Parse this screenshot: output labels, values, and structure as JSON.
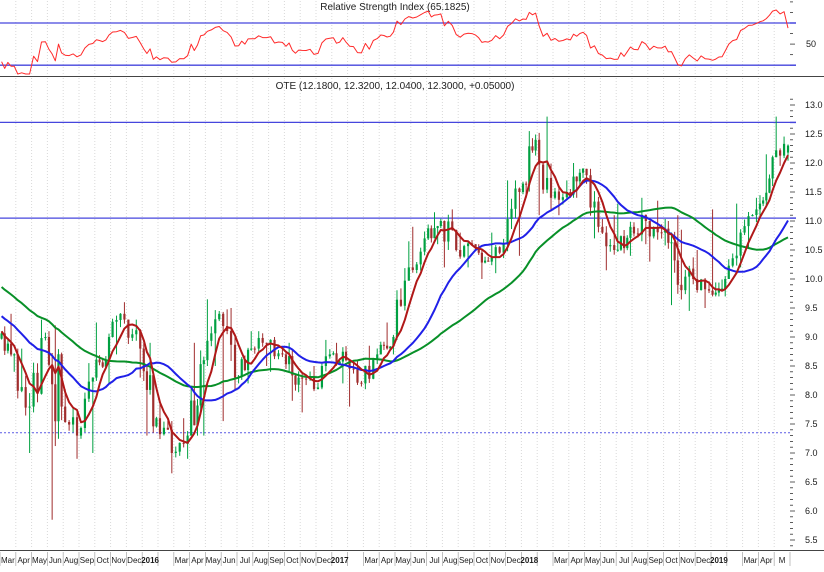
{
  "window": {
    "background": "#ffffff"
  },
  "rsi_panel": {
    "title": "Relative Strength Index (65.1825)",
    "indicator_name": "Relative Strength Index",
    "last_value": 65.1825,
    "levels": {
      "upper": 70,
      "middle": 50,
      "lower": 30
    },
    "axis_label": "50"
  },
  "price_panel": {
    "title": "OTE (12.1800, 12.3200, 12.0400, 12.3000, +0.05000)",
    "symbol": "OTE",
    "last_bar": {
      "open": 12.18,
      "high": 12.32,
      "low": 12.04,
      "close": 12.3,
      "change": "+0.05000"
    },
    "y_ticks": [
      13.0,
      12.5,
      12.0,
      11.5,
      11.0,
      10.5,
      10.0,
      9.5,
      9.0,
      8.5,
      8.0,
      7.5,
      7.0,
      6.5,
      6.0,
      5.5
    ]
  },
  "x_axis": {
    "slots": [
      "Mar",
      "Apr",
      "May",
      "Jun",
      "Aug",
      "Sep",
      "Oct",
      "Nov",
      "Dec",
      "2016",
      "",
      "Mar",
      "Apr",
      "May",
      "Jun",
      "Jul",
      "Aug",
      "Sep",
      "Oct",
      "Nov",
      "Dec",
      "2017",
      "",
      "Mar",
      "Apr",
      "May",
      "Jun",
      "Jul",
      "Aug",
      "Sep",
      "Oct",
      "Nov",
      "Dec",
      "2018",
      "",
      "Mar",
      "Apr",
      "May",
      "Jun",
      "Jul",
      "Aug",
      "Sep",
      "Oct",
      "Nov",
      "Dec",
      "2019",
      "",
      "Mar",
      "Apr",
      "M"
    ]
  },
  "colors": {
    "candle_up": "#00a041",
    "candle_down": "#a02d2d",
    "ma_fast": "#b01818",
    "ma_medium": "#2020e8",
    "ma_slow": "#089028",
    "rsi_line": "#ff2a2a",
    "level_blue": "#4646dd",
    "dotted_blue": "#5a5ae6",
    "grid": "#d9d9d9",
    "separator": "#444444",
    "axis_text": "#1a1a1a",
    "tick": "#333333"
  },
  "chart_data": {
    "type": "candlestick",
    "symbol": "OTE",
    "title": "OTE (12.1800, 12.3200, 12.0400, 12.3000, +0.05000)",
    "timeframe_note": "weekly bars, Mar 2015 - May 2019 (Jul 2015 missing: market closure)",
    "ylim": [
      5.3,
      13.15
    ],
    "y_ticks": [
      5.5,
      6.0,
      6.5,
      7.0,
      7.5,
      8.0,
      8.5,
      9.0,
      9.5,
      10.0,
      10.5,
      11.0,
      11.5,
      12.0,
      12.5,
      13.0
    ],
    "x_labels": [
      "Mar",
      "Apr",
      "May",
      "Jun",
      "Aug",
      "Sep",
      "Oct",
      "Nov",
      "Dec",
      "2016",
      "",
      "Mar",
      "Apr",
      "May",
      "Jun",
      "Jul",
      "Aug",
      "Sep",
      "Oct",
      "Nov",
      "Dec",
      "2017",
      "",
      "Mar",
      "Apr",
      "May",
      "Jun",
      "Jul",
      "Aug",
      "Sep",
      "Oct",
      "Nov",
      "Dec",
      "2018",
      "",
      "Mar",
      "Apr",
      "May",
      "Jun",
      "Jul",
      "Aug",
      "Sep",
      "Oct",
      "Nov",
      "Dec",
      "2019",
      "",
      "Mar",
      "Apr",
      "M"
    ],
    "last_bar": {
      "open": 12.18,
      "high": 12.32,
      "low": 12.04,
      "close": 12.3,
      "change": "+0.05000"
    },
    "monthly_anchors": [
      {
        "m": "2015-03",
        "c": 8.7,
        "h": 9.4,
        "l": 8.4
      },
      {
        "m": "2015-04",
        "c": 7.8,
        "h": 8.8,
        "l": 7.0
      },
      {
        "m": "2015-05",
        "c": 9.0,
        "h": 9.3,
        "l": 7.7
      },
      {
        "m": "2015-06",
        "c": 7.8,
        "h": 9.2,
        "l": 5.85
      },
      {
        "m": "2015-08",
        "c": 7.3,
        "h": 8.1,
        "l": 6.9
      },
      {
        "m": "2015-09",
        "c": 8.3,
        "h": 8.55,
        "l": 7.0
      },
      {
        "m": "2015-10",
        "c": 9.0,
        "h": 9.25,
        "l": 8.2
      },
      {
        "m": "2015-11",
        "c": 9.3,
        "h": 9.6,
        "l": 8.7
      },
      {
        "m": "2015-12",
        "c": 8.8,
        "h": 9.3,
        "l": 8.3
      },
      {
        "m": "2016-01",
        "c": 7.6,
        "h": 8.9,
        "l": 7.3
      },
      {
        "m": "2016-02",
        "c": 7.0,
        "h": 7.9,
        "l": 6.65
      },
      {
        "m": "2016-03",
        "c": 7.3,
        "h": 7.6,
        "l": 6.9
      },
      {
        "m": "2016-04",
        "c": 8.6,
        "h": 8.9,
        "l": 7.3
      },
      {
        "m": "2016-05",
        "c": 9.4,
        "h": 9.65,
        "l": 8.5
      },
      {
        "m": "2016-06",
        "c": 8.3,
        "h": 9.5,
        "l": 7.55
      },
      {
        "m": "2016-07",
        "c": 8.8,
        "h": 9.1,
        "l": 8.2
      },
      {
        "m": "2016-08",
        "c": 8.9,
        "h": 9.1,
        "l": 8.5
      },
      {
        "m": "2016-09",
        "c": 8.7,
        "h": 9.0,
        "l": 8.4
      },
      {
        "m": "2016-10",
        "c": 8.3,
        "h": 8.9,
        "l": 7.9
      },
      {
        "m": "2016-11",
        "c": 8.1,
        "h": 8.5,
        "l": 7.7
      },
      {
        "m": "2016-12",
        "c": 8.7,
        "h": 8.95,
        "l": 8.1
      },
      {
        "m": "2017-01",
        "c": 8.6,
        "h": 8.9,
        "l": 8.2
      },
      {
        "m": "2017-02",
        "c": 8.2,
        "h": 8.6,
        "l": 7.8
      },
      {
        "m": "2017-03",
        "c": 8.7,
        "h": 8.85,
        "l": 8.1
      },
      {
        "m": "2017-04",
        "c": 9.0,
        "h": 9.25,
        "l": 8.7
      },
      {
        "m": "2017-05",
        "c": 10.2,
        "h": 10.65,
        "l": 8.95
      },
      {
        "m": "2017-06",
        "c": 10.7,
        "h": 10.9,
        "l": 10.1
      },
      {
        "m": "2017-07",
        "c": 11.0,
        "h": 11.15,
        "l": 10.6
      },
      {
        "m": "2017-08",
        "c": 10.5,
        "h": 11.2,
        "l": 10.2
      },
      {
        "m": "2017-09",
        "c": 10.6,
        "h": 10.8,
        "l": 10.2
      },
      {
        "m": "2017-10",
        "c": 10.3,
        "h": 10.6,
        "l": 10.0
      },
      {
        "m": "2017-11",
        "c": 10.6,
        "h": 10.8,
        "l": 10.1
      },
      {
        "m": "2017-12",
        "c": 11.5,
        "h": 11.7,
        "l": 10.4
      },
      {
        "m": "2018-01",
        "c": 12.4,
        "h": 12.55,
        "l": 11.4
      },
      {
        "m": "2018-02",
        "c": 11.4,
        "h": 12.8,
        "l": 11.1
      },
      {
        "m": "2018-03",
        "c": 11.5,
        "h": 11.7,
        "l": 11.1
      },
      {
        "m": "2018-04",
        "c": 11.9,
        "h": 12.0,
        "l": 11.4
      },
      {
        "m": "2018-05",
        "c": 10.9,
        "h": 11.9,
        "l": 10.7
      },
      {
        "m": "2018-06",
        "c": 10.5,
        "h": 11.1,
        "l": 10.15
      },
      {
        "m": "2018-07",
        "c": 10.9,
        "h": 11.3,
        "l": 10.4
      },
      {
        "m": "2018-08",
        "c": 11.0,
        "h": 11.4,
        "l": 10.6
      },
      {
        "m": "2018-09",
        "c": 10.8,
        "h": 11.35,
        "l": 10.3
      },
      {
        "m": "2018-10",
        "c": 9.9,
        "h": 11.1,
        "l": 9.55
      },
      {
        "m": "2018-11",
        "c": 10.0,
        "h": 10.85,
        "l": 9.45
      },
      {
        "m": "2018-12",
        "c": 9.8,
        "h": 10.5,
        "l": 9.5
      },
      {
        "m": "2019-01",
        "c": 10.0,
        "h": 11.2,
        "l": 9.7
      },
      {
        "m": "2019-02",
        "c": 10.8,
        "h": 11.3,
        "l": 10.2
      },
      {
        "m": "2019-03",
        "c": 11.2,
        "h": 11.4,
        "l": 10.55
      },
      {
        "m": "2019-04",
        "c": 12.1,
        "h": 12.15,
        "l": 11.05
      },
      {
        "m": "2019-05",
        "c": 12.3,
        "h": 12.8,
        "l": 11.95
      }
    ],
    "horizontal_lines": [
      {
        "value": 12.7,
        "style": "solid"
      },
      {
        "value": 11.05,
        "style": "solid"
      },
      {
        "value": 7.35,
        "style": "dotted"
      }
    ],
    "moving_averages": [
      {
        "name": "ma-fast",
        "type": "sma",
        "period": 6,
        "color": "#b01818"
      },
      {
        "name": "ma-medium",
        "type": "sma",
        "period": 22,
        "color": "#2020e8"
      },
      {
        "name": "ma-slow",
        "type": "sma",
        "period": 46,
        "color": "#089028"
      }
    ],
    "indicator_pane": {
      "name": "Relative Strength Index",
      "period": 14,
      "last_value": 65.1825,
      "levels": [
        30,
        50,
        70
      ],
      "labeled_level": "50"
    }
  }
}
